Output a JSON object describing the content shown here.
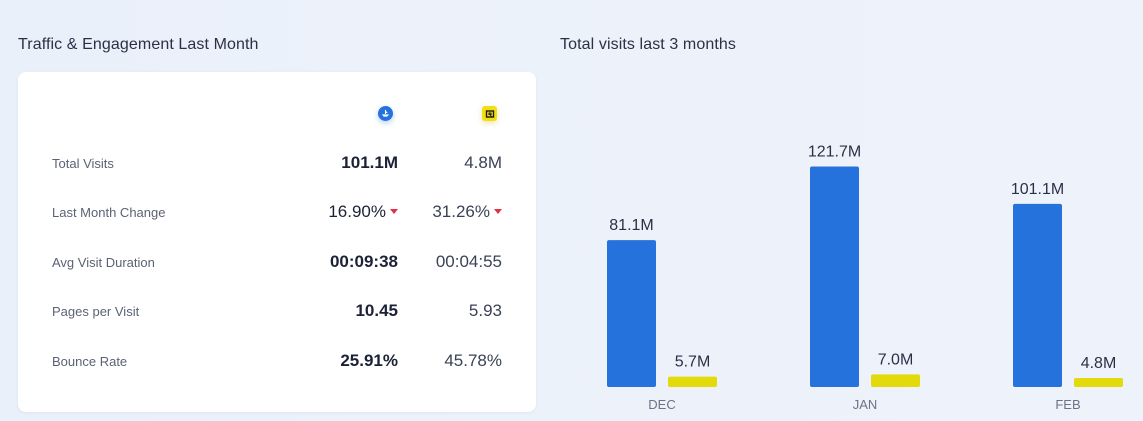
{
  "left_section": {
    "title": "Traffic & Engagement Last Month",
    "sites": [
      {
        "icon": "blue-site-logo-icon",
        "color": "#2672dc"
      },
      {
        "icon": "yellow-site-logo-icon",
        "color": "#f1df14"
      }
    ],
    "metrics": [
      {
        "label": "Total Visits",
        "site1": "101.1M",
        "site2": "4.8M",
        "trend1": "",
        "trend2": ""
      },
      {
        "label": "Last Month Change",
        "site1": "16.90%",
        "site2": "31.26%",
        "trend1": "down",
        "trend2": "down"
      },
      {
        "label": "Avg Visit Duration",
        "site1": "00:09:38",
        "site2": "00:04:55",
        "trend1": "",
        "trend2": ""
      },
      {
        "label": "Pages per Visit",
        "site1": "10.45",
        "site2": "5.93",
        "trend1": "",
        "trend2": ""
      },
      {
        "label": "Bounce Rate",
        "site1": "25.91%",
        "site2": "45.78%",
        "trend1": "",
        "trend2": ""
      }
    ]
  },
  "right_section": {
    "title": "Total visits last 3 months"
  },
  "chart_data": {
    "type": "bar",
    "title": "Total visits last 3 months",
    "categories": [
      "DEC",
      "JAN",
      "FEB"
    ],
    "series": [
      {
        "values": [
          81.1,
          121.7,
          101.1
        ],
        "labels": [
          "81.1M",
          "121.7M",
          "101.1M"
        ],
        "color": "#2672dc"
      },
      {
        "values": [
          5.7,
          7.0,
          4.8
        ],
        "labels": [
          "5.7M",
          "7.0M",
          "4.8M"
        ],
        "color": "#e3da0c"
      }
    ],
    "ylim": [
      0,
      140
    ],
    "grid": false,
    "legend": "none"
  }
}
